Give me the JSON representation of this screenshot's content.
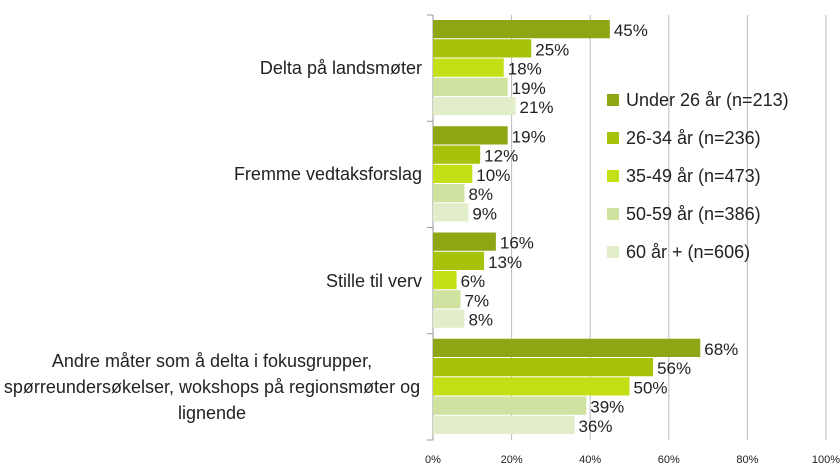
{
  "chart_data": {
    "type": "hbar",
    "categories": [
      "Delta på landsmøter",
      "Fremme vedtaksforslag",
      "Stille til verv",
      "Andre måter som å delta i fokusgrupper, spørreundersøkelser, wokshops på regionsmøter og lignende"
    ],
    "series": [
      {
        "name": "Under 26 år (n=213)",
        "color": "#8fa614",
        "values": [
          45,
          19,
          16,
          68
        ],
        "value_labels": [
          "45%",
          "19%",
          "16%",
          "68%"
        ]
      },
      {
        "name": "26-34 år (n=236)",
        "color": "#a8c20c",
        "values": [
          25,
          12,
          13,
          56
        ],
        "value_labels": [
          "25%",
          "12%",
          "13%",
          "56%"
        ]
      },
      {
        "name": "35-49 år (n=473)",
        "color": "#c4df16",
        "values": [
          18,
          10,
          6,
          50
        ],
        "value_labels": [
          "18%",
          "10%",
          "6%",
          "50%"
        ]
      },
      {
        "name": "50-59 år (n=386)",
        "color": "#cfe2a0",
        "values": [
          19,
          8,
          7,
          39
        ],
        "value_labels": [
          "19%",
          "8%",
          "7%",
          "39%"
        ]
      },
      {
        "name": "60 år + (n=606)",
        "color": "#e2edc9",
        "values": [
          21,
          9,
          8,
          36
        ],
        "value_labels": [
          "21%",
          "9%",
          "8%",
          "36%"
        ]
      }
    ],
    "xlim": [
      0,
      100
    ],
    "xticks": [
      {
        "value": 0,
        "label": "0%"
      },
      {
        "value": 20,
        "label": "20%"
      },
      {
        "value": 40,
        "label": "40%"
      },
      {
        "value": 60,
        "label": "60%"
      },
      {
        "value": 80,
        "label": "80%"
      },
      {
        "value": 100,
        "label": "100%"
      }
    ],
    "grid": true,
    "legend": "right"
  }
}
